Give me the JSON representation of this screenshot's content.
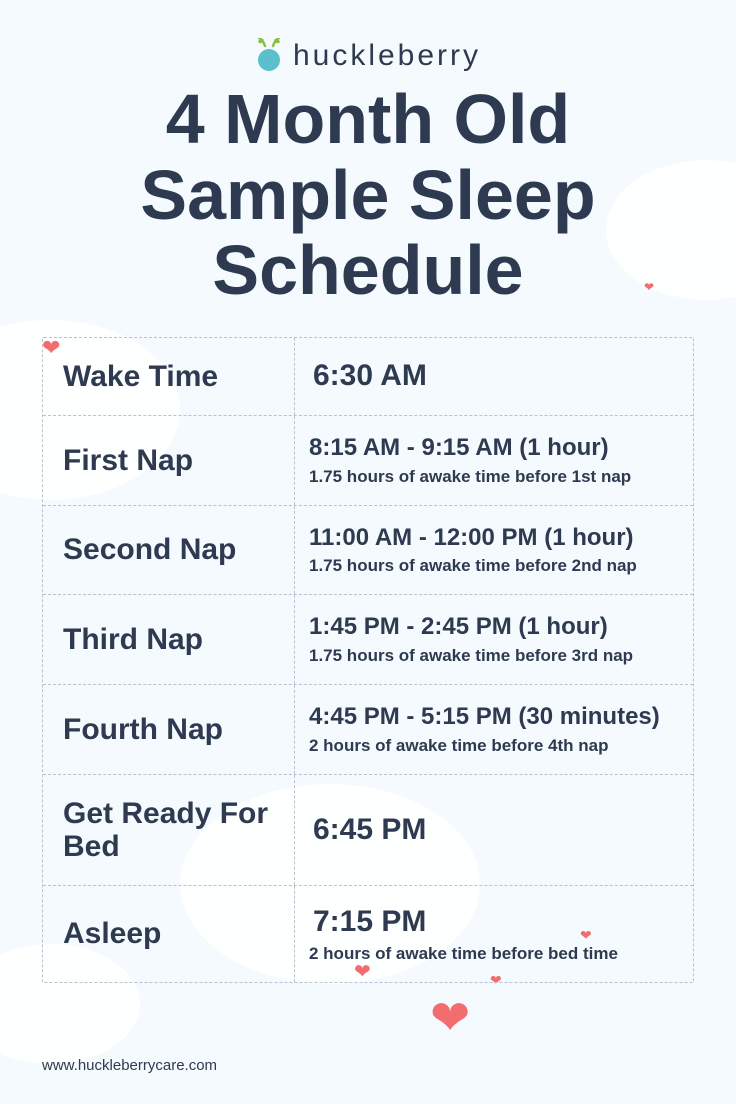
{
  "brand": "huckleberry",
  "title": "4 Month Old Sample Sleep Schedule",
  "colors": {
    "background": "#f5faff",
    "text": "#2e3a4f",
    "heart": "#f26d6d",
    "logo_circle": "#5bc0cc",
    "logo_leaf": "#8bbf3e",
    "border": "#b8c2d0"
  },
  "rows": [
    {
      "label": "Wake Time",
      "main": "6:30 AM",
      "big": true,
      "sub": ""
    },
    {
      "label": "First Nap",
      "main": "8:15 AM - 9:15 AM (1 hour)",
      "sub": "1.75 hours of awake time before 1st nap"
    },
    {
      "label": "Second Nap",
      "main": "11:00 AM - 12:00 PM (1 hour)",
      "sub": "1.75 hours of awake time before 2nd nap"
    },
    {
      "label": "Third Nap",
      "main": "1:45 PM - 2:45 PM (1 hour)",
      "sub": "1.75 hours of awake time before 3rd nap"
    },
    {
      "label": "Fourth Nap",
      "main": "4:45 PM - 5:15 PM (30 minutes)",
      "sub": "2 hours of awake time before 4th nap"
    },
    {
      "label": "Get Ready For Bed",
      "main": "6:45 PM",
      "big": true,
      "sub": ""
    },
    {
      "label": "Asleep",
      "main": "7:15 PM",
      "big": true,
      "sub": "2 hours of awake time before bed time"
    }
  ],
  "footer": "www.huckleberrycare.com"
}
